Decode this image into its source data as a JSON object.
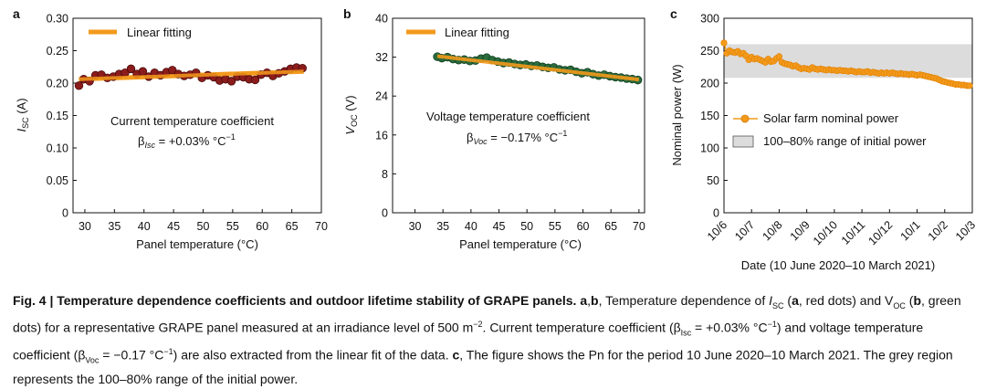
{
  "chart_data": [
    {
      "panel": "a",
      "type": "scatter",
      "xlabel": "Panel temperature (°C)",
      "ylabel": "I",
      "ylabel_sub": "SC",
      "ylabel_unit": " (A)",
      "xlim": [
        28,
        70
      ],
      "ylim": [
        0,
        0.3
      ],
      "xticks": [
        30,
        35,
        40,
        45,
        50,
        55,
        60,
        65,
        70
      ],
      "yticks": [
        0,
        0.05,
        0.1,
        0.15,
        0.2,
        0.25,
        0.3
      ],
      "ytick_labels": [
        "0",
        "0.05",
        "0.10",
        "0.15",
        "0.20",
        "0.25",
        "0.30"
      ],
      "legend": "Linear fitting",
      "annotation_line1": "Current temperature coefficient",
      "annotation_beta": "β",
      "annotation_sub": "Isc",
      "annotation_value": " = +0.03% °C",
      "annotation_sup": "−1",
      "dot_color": "#8b1c1c",
      "fit_color": "#f39a1c",
      "fit": {
        "x": [
          29,
          67
        ],
        "y": [
          0.206,
          0.218
        ]
      },
      "x": [
        29.0,
        29.8,
        30.8,
        31.8,
        32.8,
        33.8,
        34.8,
        35.8,
        36.8,
        37.8,
        38.8,
        39.8,
        40.8,
        41.8,
        42.8,
        43.8,
        44.8,
        45.8,
        46.8,
        47.8,
        48.8,
        49.8,
        50.8,
        51.8,
        52.8,
        53.8,
        54.8,
        55.8,
        56.8,
        57.8,
        58.8,
        59.8,
        60.8,
        61.8,
        62.8,
        63.8,
        64.8,
        65.8,
        66.8
      ],
      "y": [
        0.196,
        0.206,
        0.203,
        0.212,
        0.213,
        0.208,
        0.21,
        0.214,
        0.216,
        0.222,
        0.214,
        0.218,
        0.21,
        0.216,
        0.212,
        0.217,
        0.22,
        0.214,
        0.211,
        0.213,
        0.216,
        0.208,
        0.212,
        0.209,
        0.204,
        0.206,
        0.203,
        0.21,
        0.209,
        0.206,
        0.205,
        0.213,
        0.216,
        0.211,
        0.215,
        0.218,
        0.222,
        0.224,
        0.223
      ]
    },
    {
      "panel": "b",
      "type": "scatter",
      "xlabel": "Panel temperature (°C)",
      "ylabel": "V",
      "ylabel_sub": "OC",
      "ylabel_unit": " (V)",
      "xlim": [
        26,
        71
      ],
      "ylim": [
        0,
        40
      ],
      "xticks": [
        30,
        35,
        40,
        45,
        50,
        55,
        60,
        65,
        70
      ],
      "yticks": [
        0,
        8,
        16,
        24,
        32,
        40
      ],
      "ytick_labels": [
        "0",
        "8",
        "16",
        "24",
        "32",
        "40"
      ],
      "legend": "Linear fitting",
      "annotation_line1": "Voltage temperature coefficient",
      "annotation_beta": "β",
      "annotation_sub": "Voc",
      "annotation_value": " = −0.17% °C",
      "annotation_sup": "−1",
      "dot_color": "#2a6b3c",
      "fit_color": "#f39a1c",
      "fit": {
        "x": [
          34,
          70
        ],
        "y": [
          32.2,
          27.4
        ]
      },
      "x": [
        34.0,
        34.8,
        35.8,
        36.8,
        37.8,
        38.8,
        39.8,
        40.8,
        41.8,
        42.8,
        43.8,
        44.8,
        45.8,
        46.8,
        47.8,
        48.8,
        49.8,
        50.8,
        51.8,
        52.8,
        53.8,
        54.8,
        55.8,
        56.8,
        57.8,
        58.8,
        59.8,
        60.8,
        61.8,
        62.8,
        63.8,
        64.8,
        65.8,
        66.8,
        67.8,
        68.8,
        69.8
      ],
      "y": [
        32.1,
        31.8,
        32.0,
        31.6,
        31.4,
        31.5,
        31.2,
        31.3,
        31.7,
        31.9,
        31.4,
        31.1,
        30.8,
        30.9,
        30.6,
        30.4,
        30.5,
        30.2,
        30.3,
        30.0,
        29.8,
        29.9,
        29.5,
        29.3,
        29.4,
        29.0,
        28.7,
        28.9,
        28.5,
        28.2,
        28.4,
        28.1,
        27.9,
        27.8,
        27.6,
        27.5,
        27.3
      ]
    },
    {
      "panel": "c",
      "type": "line",
      "xlabel": "Date (10 June 2020–10 March 2021)",
      "ylabel": "Nominal power (W)",
      "xlim": [
        0,
        9
      ],
      "ylim": [
        0,
        300
      ],
      "xticks": [
        0,
        1,
        2,
        3,
        4,
        5,
        6,
        7,
        8,
        9
      ],
      "xtick_labels": [
        "10/6",
        "10/7",
        "10/8",
        "10/9",
        "10/10",
        "10/11",
        "10/12",
        "10/1",
        "10/2",
        "10/3"
      ],
      "yticks": [
        0,
        50,
        100,
        150,
        200,
        250,
        300
      ],
      "ytick_labels": [
        "0",
        "50",
        "100",
        "150",
        "200",
        "250",
        "300"
      ],
      "band": [
        208,
        260
      ],
      "band_color": "#dcdcdc",
      "line_color": "#f39a1c",
      "legend_series": "Solar farm nominal power",
      "legend_band": "100–80% range of initial power",
      "x": [
        0.0,
        0.1,
        0.2,
        0.3,
        0.4,
        0.5,
        0.6,
        0.7,
        0.8,
        0.9,
        1.0,
        1.1,
        1.2,
        1.3,
        1.4,
        1.5,
        1.6,
        1.7,
        1.8,
        1.9,
        2.0,
        2.1,
        2.2,
        2.3,
        2.4,
        2.5,
        2.6,
        2.7,
        2.8,
        2.9,
        3.0,
        3.1,
        3.2,
        3.3,
        3.4,
        3.5,
        3.6,
        3.7,
        3.8,
        3.9,
        4.0,
        4.1,
        4.2,
        4.3,
        4.4,
        4.5,
        4.6,
        4.7,
        4.8,
        4.9,
        5.0,
        5.1,
        5.2,
        5.3,
        5.4,
        5.5,
        5.6,
        5.7,
        5.8,
        5.9,
        6.0,
        6.1,
        6.2,
        6.3,
        6.4,
        6.5,
        6.6,
        6.7,
        6.8,
        6.9,
        7.0,
        7.1,
        7.2,
        7.3,
        7.4,
        7.5,
        7.6,
        7.7,
        7.8,
        7.9,
        8.0,
        8.1,
        8.2,
        8.3,
        8.4,
        8.5,
        8.6,
        8.7,
        8.8,
        8.9
      ],
      "y": [
        262,
        246,
        250,
        248,
        247,
        249,
        245,
        246,
        242,
        236,
        240,
        237,
        238,
        236,
        234,
        232,
        237,
        233,
        234,
        238,
        241,
        232,
        230,
        229,
        228,
        226,
        227,
        224,
        222,
        223,
        222,
        221,
        224,
        222,
        221,
        222,
        221,
        220,
        221,
        220,
        220,
        219,
        220,
        219,
        219,
        218,
        219,
        218,
        217,
        218,
        217,
        217,
        218,
        216,
        217,
        216,
        215,
        216,
        215,
        216,
        215,
        216,
        215,
        214,
        215,
        214,
        214,
        213,
        214,
        213,
        212,
        213,
        212,
        211,
        210,
        209,
        208,
        207,
        205,
        203,
        202,
        201,
        200,
        199,
        198,
        198,
        197,
        197,
        196,
        196
      ]
    }
  ],
  "caption": {
    "fig_label": "Fig. 4 | Temperature dependence coefficients and outdoor lifetime stability of GRAPE panels.",
    "ab": "a",
    "comma": ",",
    "b": "b",
    "t1": ", Temperature dependence of ",
    "isc_i": "I",
    "isc_sub": "SC",
    "t2": " (",
    "a": "a",
    "t3": ", red dots) and V",
    "voc_sub": "OC",
    "t4": " (",
    "b2": "b",
    "t5": ", green dots) for a representative GRAPE panel measured at an irradiance level of 500 m",
    "t5_sup": "−2",
    "t6": ". Current temperature coefficient (β",
    "t6_sub": "Isc",
    "t7": " = +0.03% °C",
    "t7_sup": "−1",
    "t8": ") and voltage temperature coefficient (β",
    "t8_sub": "Voc",
    "t9": " = −0.17 °C",
    "t9_sup": "−1",
    "t10": ") are also extracted from the linear fit of the data. ",
    "c": "c",
    "t11": ", The figure shows the Pn for the period 10 June 2020–10 March 2021. The grey region represents the 100–80% range of the initial power."
  }
}
